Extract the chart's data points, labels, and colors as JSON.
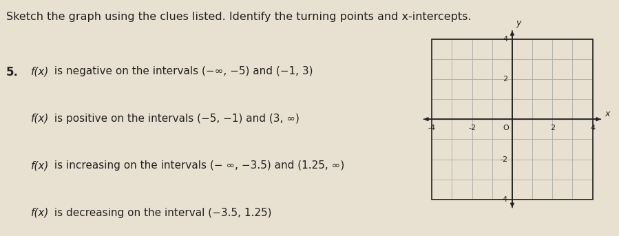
{
  "title_text": "Sketch the graph using the clues listed. Identify the turning points and x-intercepts.",
  "problem_number": "5.",
  "clue_texts": [
    "f(x) is negative on the intervals (−∞, −5) and (−1, 3)",
    "f(x) is positive on the intervals (−5, −1) and (3, ∞)",
    "f(x) is increasing on the intervals (− ∞, −3.5) and (1.25, ∞)",
    "f(x) is decreasing on the interval (−3.5, 1.25)"
  ],
  "xtick_labels": [
    "-4",
    "-2",
    "O",
    "2",
    "4"
  ],
  "xtick_vals": [
    -4,
    -2,
    0,
    2,
    4
  ],
  "ytick_labels": [
    "4",
    "2",
    "-2",
    "-4"
  ],
  "ytick_vals": [
    4,
    2,
    -2,
    -4
  ],
  "xlabel": "x",
  "ylabel": "y",
  "bg_color": "#e8e0d0",
  "grid_color": "#aaaaaa",
  "axis_color": "#222222",
  "text_color": "#222222",
  "white": "#ffffff",
  "title_fontsize": 11.5,
  "clue_fontsize": 11,
  "num_fontsize": 12,
  "axis_xlim": [
    -4.7,
    4.7
  ],
  "axis_ylim": [
    -4.7,
    4.7
  ]
}
